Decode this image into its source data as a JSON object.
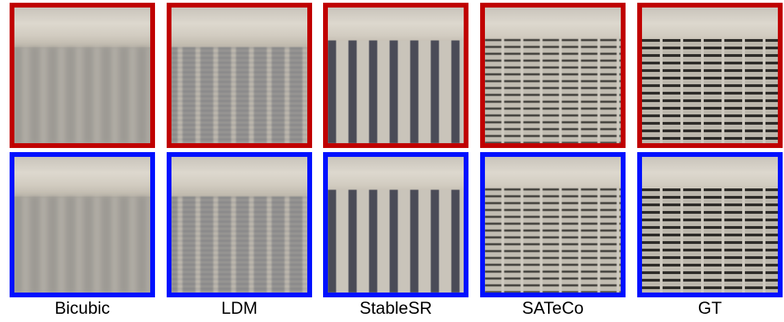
{
  "panels": [
    {
      "label": "Bicubic"
    },
    {
      "label": "LDM"
    },
    {
      "label": "StableSR"
    },
    {
      "label": "SATeCo"
    },
    {
      "label": "GT"
    }
  ]
}
